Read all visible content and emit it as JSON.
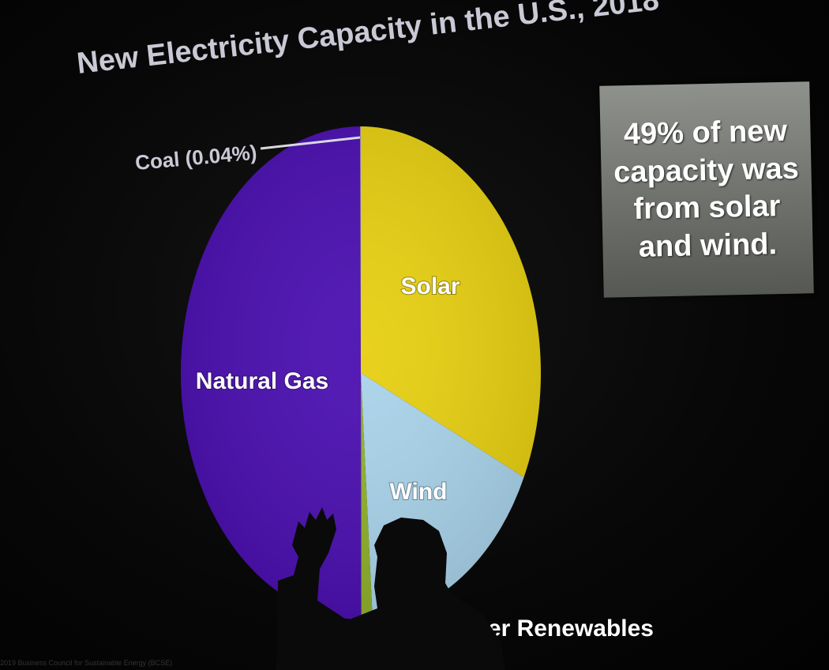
{
  "chart_data": {
    "type": "pie",
    "title": "New Electricity Capacity in the U.S., 2018",
    "slices": [
      {
        "label": "Solar",
        "value": 31.96,
        "color": "#e7cf10"
      },
      {
        "label": "Wind",
        "value": 17.0,
        "color": "#a9d3ea"
      },
      {
        "label": "Other Renewables",
        "value": 1.0,
        "color": "#8fb02a"
      },
      {
        "label": "Natural Gas",
        "value": 50.0,
        "color": "#4a0eb0"
      },
      {
        "label": "Coal (0.04%)",
        "value": 0.04,
        "color": "#e0e0e0"
      }
    ]
  },
  "callout": {
    "text": "49% of new capacity was from solar and wind."
  },
  "footer_source": "2019 Business Council for Sustainable Energy (BCSE)"
}
